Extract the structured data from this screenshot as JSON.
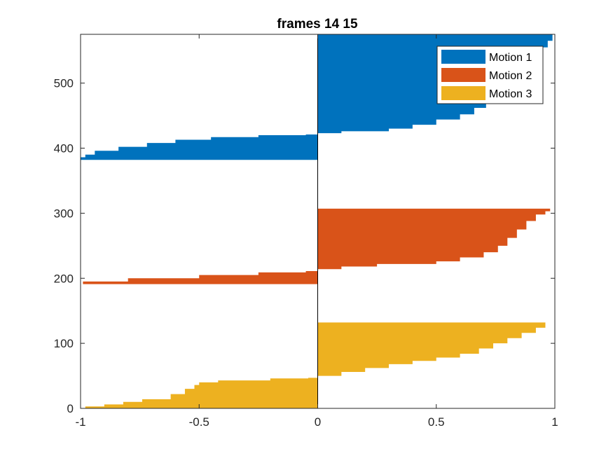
{
  "chart_data": {
    "type": "silhouette",
    "title": "frames 14 15",
    "xlabel": "",
    "ylabel": "",
    "xlim": [
      -1,
      1
    ],
    "ylim": [
      0,
      575
    ],
    "xticks": [
      -1,
      -0.5,
      0,
      0.5,
      1
    ],
    "xtick_labels": [
      "-1",
      "-0.5",
      "0",
      "0.5",
      "1"
    ],
    "yticks": [
      0,
      100,
      200,
      300,
      400,
      500
    ],
    "ytick_labels": [
      "0",
      "100",
      "200",
      "300",
      "400",
      "500"
    ],
    "grid": false,
    "legend_position": "top-right",
    "series": [
      {
        "name": "Motion 3",
        "color": "#EDB120",
        "y_range": [
          0,
          132
        ],
        "profile": [
          [
            0,
            -0.98
          ],
          [
            3,
            -0.9
          ],
          [
            6,
            -0.82
          ],
          [
            10,
            -0.74
          ],
          [
            14,
            -0.62
          ],
          [
            22,
            -0.56
          ],
          [
            30,
            -0.52
          ],
          [
            36,
            -0.5
          ],
          [
            40,
            -0.42
          ],
          [
            43,
            -0.2
          ],
          [
            46,
            -0.04
          ],
          [
            47,
            0
          ],
          [
            50,
            0.1
          ],
          [
            56,
            0.2
          ],
          [
            62,
            0.3
          ],
          [
            68,
            0.4
          ],
          [
            73,
            0.5
          ],
          [
            78,
            0.6
          ],
          [
            84,
            0.68
          ],
          [
            92,
            0.74
          ],
          [
            100,
            0.8
          ],
          [
            108,
            0.86
          ],
          [
            116,
            0.92
          ],
          [
            124,
            0.96
          ],
          [
            132,
            1.0
          ]
        ]
      },
      {
        "name": "Motion 2",
        "color": "#D95319",
        "y_range": [
          191,
          307
        ],
        "profile": [
          [
            191,
            -0.99
          ],
          [
            195,
            -0.8
          ],
          [
            200,
            -0.5
          ],
          [
            205,
            -0.25
          ],
          [
            209,
            -0.05
          ],
          [
            211,
            0
          ],
          [
            214,
            0.1
          ],
          [
            218,
            0.25
          ],
          [
            222,
            0.5
          ],
          [
            226,
            0.6
          ],
          [
            232,
            0.7
          ],
          [
            240,
            0.76
          ],
          [
            250,
            0.8
          ],
          [
            262,
            0.84
          ],
          [
            275,
            0.88
          ],
          [
            288,
            0.92
          ],
          [
            298,
            0.96
          ],
          [
            303,
            0.98
          ],
          [
            307,
            1.0
          ]
        ]
      },
      {
        "name": "Motion 1",
        "color": "#0072BD",
        "y_range": [
          382,
          575
        ],
        "profile": [
          [
            382,
            -1.0
          ],
          [
            386,
            -0.98
          ],
          [
            390,
            -0.94
          ],
          [
            396,
            -0.84
          ],
          [
            402,
            -0.72
          ],
          [
            408,
            -0.6
          ],
          [
            413,
            -0.45
          ],
          [
            417,
            -0.25
          ],
          [
            420,
            -0.05
          ],
          [
            421,
            0
          ],
          [
            423,
            0.1
          ],
          [
            426,
            0.3
          ],
          [
            430,
            0.4
          ],
          [
            436,
            0.5
          ],
          [
            444,
            0.6
          ],
          [
            452,
            0.66
          ],
          [
            462,
            0.71
          ],
          [
            472,
            0.75
          ],
          [
            485,
            0.8
          ],
          [
            500,
            0.85
          ],
          [
            520,
            0.9
          ],
          [
            540,
            0.94
          ],
          [
            555,
            0.97
          ],
          [
            565,
            0.99
          ],
          [
            575,
            1.0
          ]
        ]
      }
    ]
  }
}
